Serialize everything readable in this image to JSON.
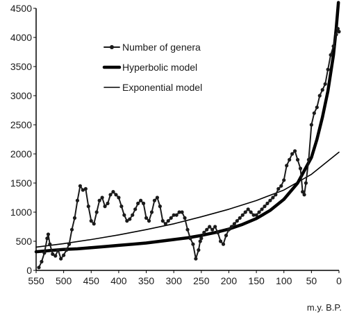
{
  "chart_data": {
    "type": "line",
    "title": "",
    "xlabel": "m.y. B.P.",
    "ylabel": "",
    "x_reversed": true,
    "xlim": [
      550,
      0
    ],
    "ylim": [
      0,
      4500
    ],
    "xticks": [
      "550",
      "500",
      "450",
      "400",
      "350",
      "300",
      "250",
      "200",
      "150",
      "100",
      "50",
      "0"
    ],
    "yticks": [
      "0",
      "500",
      "1000",
      "1500",
      "2000",
      "2500",
      "3000",
      "3500",
      "4000",
      "4500"
    ],
    "grid": false,
    "legend_position": "top-left",
    "series": [
      {
        "name": "Number of genera",
        "style": "line-with-markers",
        "color": "#1a1a1a",
        "x": [
          545,
          540,
          535,
          530,
          528,
          525,
          520,
          515,
          510,
          505,
          500,
          495,
          490,
          485,
          480,
          475,
          470,
          465,
          460,
          455,
          450,
          445,
          440,
          435,
          430,
          425,
          420,
          415,
          410,
          405,
          400,
          395,
          390,
          385,
          380,
          375,
          370,
          365,
          360,
          355,
          350,
          345,
          340,
          335,
          330,
          325,
          320,
          315,
          310,
          305,
          300,
          295,
          290,
          285,
          280,
          275,
          270,
          265,
          260,
          255,
          252,
          250,
          245,
          240,
          235,
          230,
          225,
          220,
          215,
          210,
          205,
          200,
          195,
          190,
          185,
          180,
          175,
          170,
          165,
          160,
          155,
          150,
          145,
          140,
          135,
          130,
          125,
          120,
          115,
          110,
          105,
          100,
          95,
          90,
          85,
          80,
          75,
          70,
          66,
          63,
          60,
          55,
          50,
          45,
          40,
          35,
          30,
          25,
          20,
          15,
          10,
          5,
          2,
          0
        ],
        "values": [
          50,
          150,
          300,
          550,
          620,
          450,
          280,
          250,
          350,
          200,
          260,
          350,
          450,
          700,
          900,
          1200,
          1450,
          1380,
          1400,
          1100,
          850,
          800,
          1000,
          1200,
          1250,
          1100,
          1150,
          1300,
          1350,
          1300,
          1250,
          1100,
          950,
          850,
          880,
          950,
          1050,
          1150,
          1200,
          1150,
          900,
          850,
          1000,
          1200,
          1250,
          1100,
          850,
          800,
          850,
          900,
          950,
          950,
          1000,
          1000,
          900,
          700,
          550,
          450,
          200,
          350,
          500,
          550,
          650,
          700,
          750,
          700,
          750,
          650,
          500,
          450,
          600,
          700,
          750,
          800,
          850,
          900,
          950,
          1000,
          1050,
          1000,
          950,
          950,
          1000,
          1050,
          1100,
          1150,
          1200,
          1250,
          1300,
          1400,
          1450,
          1550,
          1800,
          1900,
          2000,
          2050,
          1900,
          1750,
          1350,
          1300,
          1500,
          1900,
          2500,
          2700,
          2800,
          3000,
          3100,
          3200,
          3450,
          3700,
          3850,
          4050,
          4150,
          4100
        ]
      },
      {
        "name": "Hyperbolic model",
        "style": "thick-line",
        "color": "#000000",
        "x": [
          550,
          525,
          500,
          475,
          450,
          425,
          400,
          375,
          350,
          325,
          300,
          275,
          250,
          225,
          200,
          175,
          150,
          125,
          100,
          75,
          50,
          40,
          30,
          20,
          10,
          5,
          1
        ],
        "values": [
          320,
          340,
          360,
          370,
          390,
          410,
          430,
          450,
          470,
          500,
          530,
          560,
          600,
          650,
          710,
          790,
          890,
          1030,
          1220,
          1500,
          1940,
          2250,
          2630,
          3080,
          3700,
          4150,
          4600
        ]
      },
      {
        "name": "Exponential model",
        "style": "thin-line",
        "color": "#000000",
        "x": [
          550,
          500,
          450,
          400,
          350,
          300,
          250,
          200,
          150,
          100,
          50,
          0
        ],
        "values": [
          400,
          460,
          530,
          610,
          700,
          800,
          920,
          1050,
          1200,
          1380,
          1650,
          2030
        ]
      }
    ]
  }
}
